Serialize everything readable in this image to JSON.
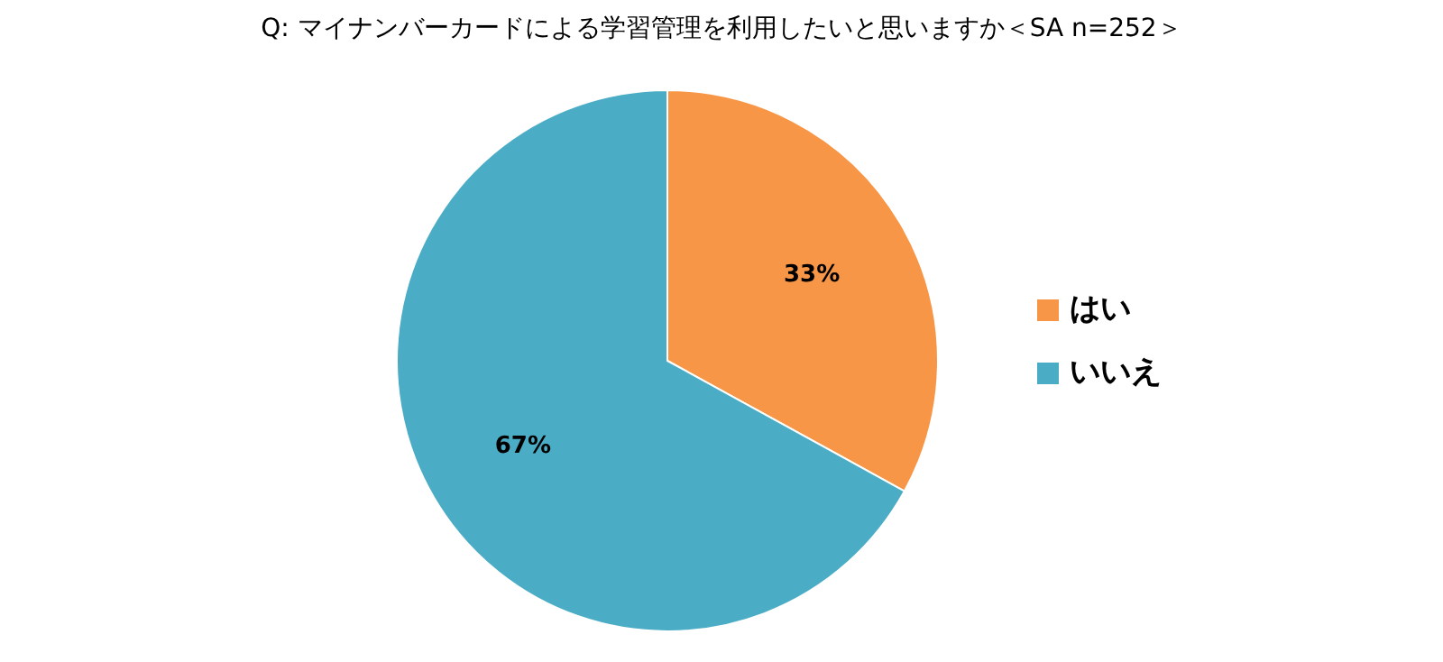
{
  "chart_data": {
    "type": "pie",
    "title": "Q:  マイナンバーカードによる学習管理を利用したいと思いますか＜SA n=252＞",
    "categories": [
      "はい",
      "いいえ"
    ],
    "values": [
      33,
      67
    ],
    "colors": [
      "#f79646",
      "#4bacc6"
    ],
    "value_labels": [
      "33%",
      "67%"
    ],
    "legend": "right"
  }
}
